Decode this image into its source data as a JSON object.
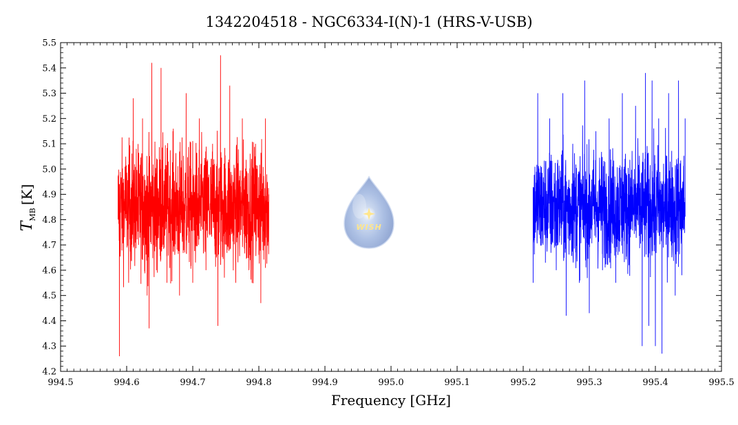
{
  "chart_data": {
    "type": "line",
    "title": "1342204518 - NGC6334-I(N)-1 (HRS-V-USB)",
    "xlabel": "Frequency [GHz]",
    "ylabel": {
      "main": "T",
      "sub": "MB",
      "unit": "[K]"
    },
    "xlim": [
      994.5,
      995.5
    ],
    "ylim": [
      4.2,
      5.5
    ],
    "x_ticks": [
      "994.5",
      "994.6",
      "994.7",
      "994.8",
      "994.9",
      "995.0",
      "995.1",
      "995.2",
      "995.3",
      "995.4",
      "995.5"
    ],
    "y_ticks": [
      "4.2",
      "4.3",
      "4.4",
      "4.5",
      "4.6",
      "4.7",
      "4.8",
      "4.9",
      "5.0",
      "5.1",
      "5.2",
      "5.3",
      "5.4",
      "5.5"
    ],
    "grid": false,
    "series": [
      {
        "color": "#ff0000",
        "x_range": [
          994.587,
          994.815
        ],
        "x": [
          994.587,
          994.589,
          994.595,
          994.603,
          994.61,
          994.618,
          994.624,
          994.631,
          994.634,
          994.638,
          994.645,
          994.652,
          994.661,
          994.67,
          994.68,
          994.69,
          994.7,
          994.71,
          994.72,
          994.73,
          994.738,
          994.742,
          994.748,
          994.756,
          994.765,
          994.775,
          994.785,
          994.795,
          994.803,
          994.81,
          994.815
        ],
        "y": [
          4.8,
          4.26,
          4.9,
          4.55,
          5.28,
          4.7,
          5.2,
          4.5,
          4.37,
          5.42,
          4.6,
          5.4,
          4.55,
          5.15,
          4.5,
          5.3,
          4.55,
          5.2,
          4.6,
          5.1,
          4.38,
          5.45,
          4.7,
          5.33,
          4.55,
          5.2,
          4.6,
          5.1,
          4.47,
          5.2,
          4.9
        ],
        "mean": 4.85,
        "noise": 0.12
      },
      {
        "color": "#0000ff",
        "x_range": [
          995.215,
          995.445
        ],
        "x": [
          995.215,
          995.222,
          995.23,
          995.24,
          995.25,
          995.26,
          995.265,
          995.275,
          995.285,
          995.293,
          995.3,
          995.31,
          995.32,
          995.33,
          995.34,
          995.35,
          995.36,
          995.37,
          995.38,
          995.385,
          995.39,
          995.395,
          995.4,
          995.405,
          995.41,
          995.42,
          995.43,
          995.435,
          995.44,
          995.445
        ],
        "y": [
          4.55,
          5.3,
          4.7,
          5.2,
          4.6,
          5.3,
          4.42,
          5.1,
          4.55,
          5.35,
          4.43,
          5.15,
          4.6,
          5.2,
          4.55,
          5.3,
          4.62,
          5.25,
          4.3,
          5.38,
          4.38,
          5.35,
          4.3,
          5.2,
          4.27,
          5.3,
          4.5,
          5.35,
          4.58,
          5.2
        ],
        "mean": 4.85,
        "noise": 0.11
      }
    ]
  },
  "logo": {
    "text": "WISH"
  }
}
